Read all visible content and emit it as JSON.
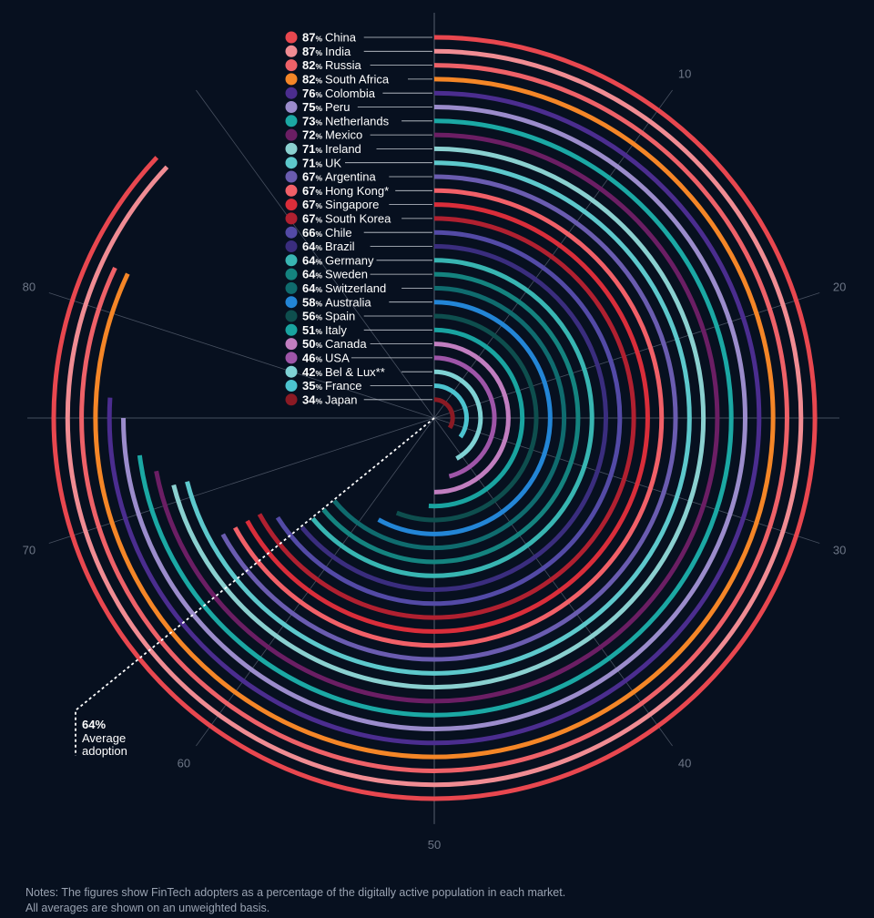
{
  "chart_data": {
    "type": "radial-bar",
    "title": "",
    "unit_suffix": "%",
    "axis": {
      "min": 0,
      "max": 100,
      "tick_labels": [
        "10",
        "20",
        "30",
        "40",
        "50",
        "60",
        "70",
        "80"
      ],
      "tick_values": [
        10,
        20,
        30,
        40,
        50,
        60,
        70,
        80
      ]
    },
    "series": [
      {
        "name": "China",
        "value": 87,
        "color": "#e8474f"
      },
      {
        "name": "India",
        "value": 87,
        "color": "#f08c93"
      },
      {
        "name": "Russia",
        "value": 82,
        "color": "#ee6168"
      },
      {
        "name": "South Africa",
        "value": 82,
        "color": "#f48627"
      },
      {
        "name": "Colombia",
        "value": 76,
        "color": "#4b2d8f"
      },
      {
        "name": "Peru",
        "value": 75,
        "color": "#9b8ccc"
      },
      {
        "name": "Netherlands",
        "value": 73,
        "color": "#1ba8a4"
      },
      {
        "name": "Mexico",
        "value": 72,
        "color": "#6b1e64"
      },
      {
        "name": "Ireland",
        "value": 71,
        "color": "#8ad0d0"
      },
      {
        "name": "UK",
        "value": 71,
        "color": "#5dc8cc"
      },
      {
        "name": "Argentina",
        "value": 67,
        "color": "#6a5cb0"
      },
      {
        "name": "Hong Kong*",
        "value": 67,
        "color": "#f16068"
      },
      {
        "name": "Singapore",
        "value": 67,
        "color": "#d92d3a"
      },
      {
        "name": "South Korea",
        "value": 67,
        "color": "#b02030"
      },
      {
        "name": "Chile",
        "value": 66,
        "color": "#534aa6"
      },
      {
        "name": "Brazil",
        "value": 64,
        "color": "#3a2d7e"
      },
      {
        "name": "Germany",
        "value": 64,
        "color": "#38b5b2"
      },
      {
        "name": "Sweden",
        "value": 64,
        "color": "#14837f"
      },
      {
        "name": "Switzerland",
        "value": 64,
        "color": "#0f6b6e"
      },
      {
        "name": "Australia",
        "value": 58,
        "color": "#2385d6"
      },
      {
        "name": "Spain",
        "value": 56,
        "color": "#0e4e4e"
      },
      {
        "name": "Italy",
        "value": 51,
        "color": "#19a3a0"
      },
      {
        "name": "Canada",
        "value": 50,
        "color": "#c17ec0"
      },
      {
        "name": "USA",
        "value": 46,
        "color": "#9e55a8"
      },
      {
        "name": "Bel & Lux**",
        "value": 42,
        "color": "#7fd2d4"
      },
      {
        "name": "France",
        "value": 35,
        "color": "#4cc3cf"
      },
      {
        "name": "Japan",
        "value": 34,
        "color": "#8b1a24"
      }
    ],
    "average": {
      "value": 64,
      "value_label": "64%",
      "label_line1": "Average",
      "label_line2": "adoption"
    }
  },
  "notes": {
    "line1": "Notes: The figures show FinTech adopters as a percentage of the digitally active population in each market.",
    "line2": "All averages are shown on an unweighted basis."
  }
}
